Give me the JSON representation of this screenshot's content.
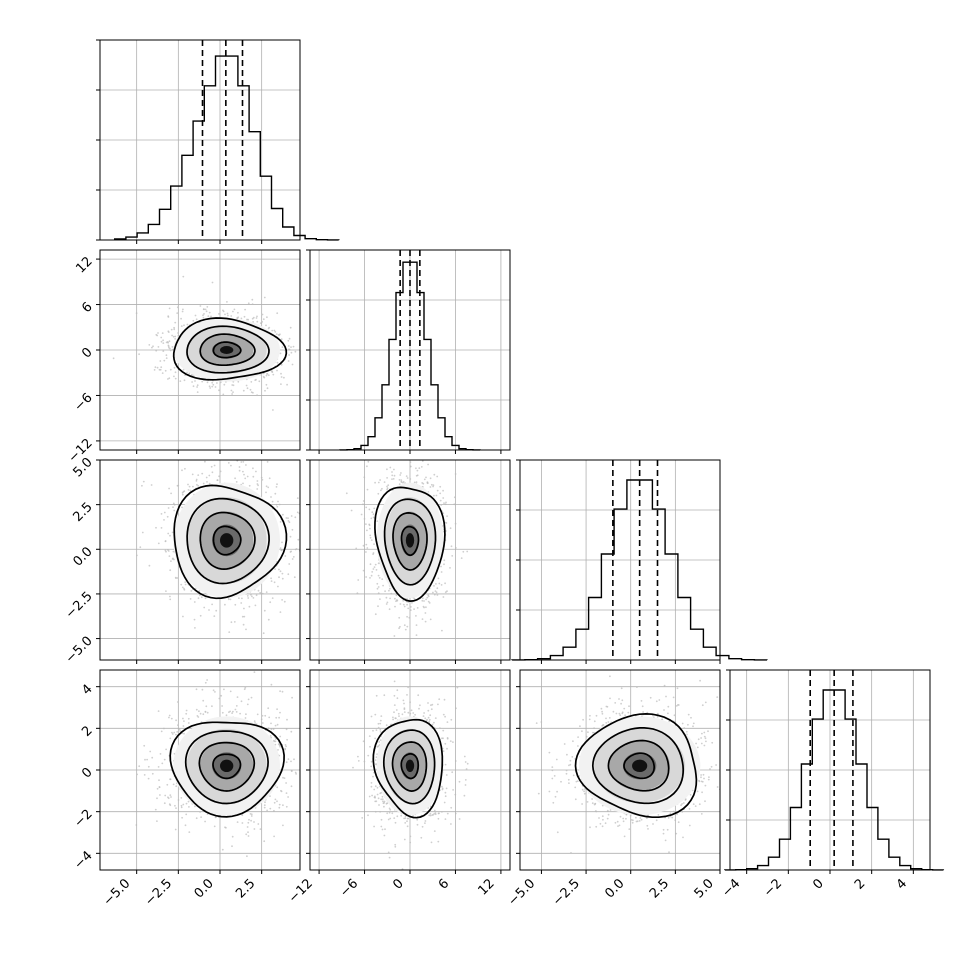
{
  "chart_data": {
    "type": "corner",
    "variables": [
      {
        "range": [
          -7.2,
          4.8
        ],
        "ticks": [
          -5.0,
          -2.5,
          0.0,
          2.5
        ],
        "tick_labels": [
          "−5.0",
          "−2.5",
          "0.0",
          "2.5"
        ],
        "mean": 0.4,
        "sigma": 1.6,
        "quantiles": [
          -1.05,
          0.35,
          1.35
        ],
        "hist_top": 0.94
      },
      {
        "range": [
          -13.2,
          13.2
        ],
        "ticks": [
          -12,
          -6,
          0,
          6,
          12
        ],
        "tick_labels": [
          "−12",
          "−6",
          "0",
          "6",
          "12"
        ],
        "mean": 0.0,
        "sigma": 2.2,
        "quantiles": [
          -1.3,
          0.0,
          1.3
        ],
        "hist_top": 0.96
      },
      {
        "range": [
          -6.2,
          5.0
        ],
        "ticks": [
          -5.0,
          -2.5,
          0.0,
          2.5,
          5.0
        ],
        "tick_labels": [
          "−5.0",
          "−2.5",
          "0.0",
          "2.5",
          "5.0"
        ],
        "mean": 0.5,
        "sigma": 1.7,
        "quantiles": [
          -1.0,
          0.5,
          1.5
        ],
        "hist_top": 0.92
      },
      {
        "range": [
          -4.8,
          4.8
        ],
        "ticks": [
          -4,
          -2,
          0,
          2,
          4
        ],
        "tick_labels": [
          "−4",
          "−2",
          "0",
          "2",
          "4"
        ],
        "mean": 0.2,
        "sigma": 1.25,
        "quantiles": [
          -0.95,
          0.2,
          1.1
        ],
        "hist_top": 0.92
      }
    ],
    "hist_bins": 20,
    "quantile_levels": [
      0.16,
      0.5,
      0.84
    ],
    "contour_levels": [
      "0.5σ",
      "1σ",
      "1.5σ",
      "2σ"
    ],
    "scatter_color": "#bbbbbb",
    "line_color": "#000000",
    "grid": true
  }
}
